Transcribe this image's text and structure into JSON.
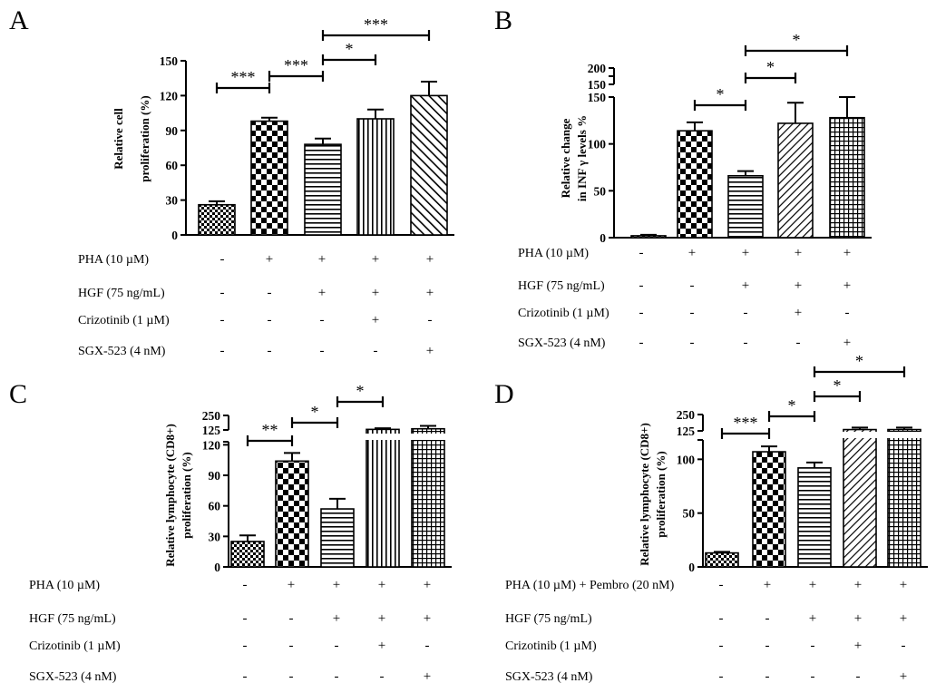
{
  "chart_data": [
    {
      "panel_label": "A",
      "type": "bar",
      "ylabel_lines": [
        "Relative cell",
        "proliferation (%)"
      ],
      "y_ticks": [
        "0",
        "30",
        "60",
        "90",
        "120",
        "150"
      ],
      "ylim": [
        0,
        150
      ],
      "values": [
        26,
        98,
        78,
        100,
        120
      ],
      "errors": [
        3,
        3,
        5,
        8,
        12
      ],
      "patterns": [
        "checker-small",
        "checker-large",
        "hlines",
        "vlines",
        "diag"
      ],
      "conditions": [
        {
          "label": "PHA (10 µM)",
          "marks": [
            "-",
            "+",
            "+",
            "+",
            "+"
          ]
        },
        {
          "label": "HGF (75 ng/mL)",
          "marks": [
            "-",
            "-",
            "+",
            "+",
            "+"
          ]
        },
        {
          "label": "Crizotinib (1 µM)",
          "marks": [
            "-",
            "-",
            "-",
            "+",
            "-"
          ]
        },
        {
          "label": "SGX-523 (4 nM)",
          "marks": [
            "-",
            "-",
            "-",
            "-",
            "+"
          ]
        }
      ],
      "significance": [
        {
          "from": 0,
          "to": 1,
          "label": "***"
        },
        {
          "from": 1,
          "to": 2,
          "label": "***"
        },
        {
          "from": 2,
          "to": 3,
          "label": "*"
        },
        {
          "from": 2,
          "to": 4,
          "label": "***"
        }
      ]
    },
    {
      "panel_label": "B",
      "type": "bar",
      "ylabel_lines": [
        "Relative change",
        "in INF γ levels %"
      ],
      "y_ticks": [
        "0",
        "50",
        "100",
        "150"
      ],
      "upper_ticks": [
        "150",
        "200"
      ],
      "ylim": [
        0,
        200
      ],
      "values": [
        2,
        114,
        66,
        122,
        128
      ],
      "errors": [
        1,
        9,
        5,
        22,
        22
      ],
      "patterns": [
        "checker-small",
        "checker-large",
        "hlines",
        "diag-thin",
        "grid"
      ],
      "conditions": [
        {
          "label": "PHA (10 µM)",
          "marks": [
            "-",
            "+",
            "+",
            "+",
            "+"
          ]
        },
        {
          "label": "HGF (75 ng/mL)",
          "marks": [
            "-",
            "-",
            "+",
            "+",
            "+"
          ]
        },
        {
          "label": "Crizotinib (1 µM)",
          "marks": [
            "-",
            "-",
            "-",
            "+",
            "-"
          ]
        },
        {
          "label": "SGX-523 (4 nM)",
          "marks": [
            "-",
            "-",
            "-",
            "-",
            "+"
          ]
        }
      ],
      "significance": [
        {
          "from": 1,
          "to": 2,
          "label": "*"
        },
        {
          "from": 2,
          "to": 3,
          "label": "*"
        },
        {
          "from": 2,
          "to": 4,
          "label": "*"
        }
      ]
    },
    {
      "panel_label": "C",
      "type": "bar",
      "ylabel_lines": [
        "Relative lymphocyte (CD8+)",
        "proliferation (%)"
      ],
      "y_ticks": [
        "0",
        "30",
        "60",
        "90",
        "120"
      ],
      "upper_ticks": [
        "125",
        "250"
      ],
      "ylim": [
        0,
        250
      ],
      "values": [
        25,
        104,
        57,
        130,
        135
      ],
      "errors": [
        6,
        8,
        10,
        10,
        25
      ],
      "patterns": [
        "checker-small",
        "checker-large",
        "hlines",
        "vlines",
        "grid"
      ],
      "conditions": [
        {
          "label": "PHA (10 µM)",
          "marks": [
            "-",
            "+",
            "+",
            "+",
            "+"
          ]
        },
        {
          "label": "HGF (75 ng/mL)",
          "marks": [
            "-",
            "-",
            "+",
            "+",
            "+"
          ]
        },
        {
          "label": "Crizotinib (1 µM)",
          "marks": [
            "-",
            "-",
            "-",
            "+",
            "-"
          ]
        },
        {
          "label": "SGX-523 (4 nM)",
          "marks": [
            "-",
            "-",
            "-",
            "-",
            "+"
          ]
        }
      ],
      "significance": [
        {
          "from": 0,
          "to": 1,
          "label": "**"
        },
        {
          "from": 1,
          "to": 2,
          "label": "*"
        },
        {
          "from": 2,
          "to": 3,
          "label": "*"
        }
      ]
    },
    {
      "panel_label": "D",
      "type": "bar",
      "ylabel_lines": [
        "Relative lymphocyte (CD8+)",
        "proliferation (%)"
      ],
      "y_ticks": [
        "0",
        "50",
        "100"
      ],
      "upper_ticks": [
        "125",
        "250"
      ],
      "ylim": [
        0,
        250
      ],
      "values": [
        13,
        107,
        92,
        135,
        135
      ],
      "errors": [
        1,
        5,
        5,
        15,
        15
      ],
      "patterns": [
        "checker-small",
        "checker-large",
        "hlines",
        "diag-thin",
        "grid"
      ],
      "conditions": [
        {
          "label": "PHA (10 µM) + Pembro (20 nM)",
          "marks": [
            "-",
            "+",
            "+",
            "+",
            "+"
          ]
        },
        {
          "label": "HGF (75 ng/mL)",
          "marks": [
            "-",
            "-",
            "+",
            "+",
            "+"
          ]
        },
        {
          "label": "Crizotinib (1 µM)",
          "marks": [
            "-",
            "-",
            "-",
            "+",
            "-"
          ]
        },
        {
          "label": "SGX-523 (4 nM)",
          "marks": [
            "-",
            "-",
            "-",
            "-",
            "+"
          ]
        }
      ],
      "significance": [
        {
          "from": 0,
          "to": 1,
          "label": "***"
        },
        {
          "from": 1,
          "to": 2,
          "label": "*"
        },
        {
          "from": 2,
          "to": 3,
          "label": "*"
        },
        {
          "from": 2,
          "to": 4,
          "label": "*"
        }
      ]
    }
  ]
}
